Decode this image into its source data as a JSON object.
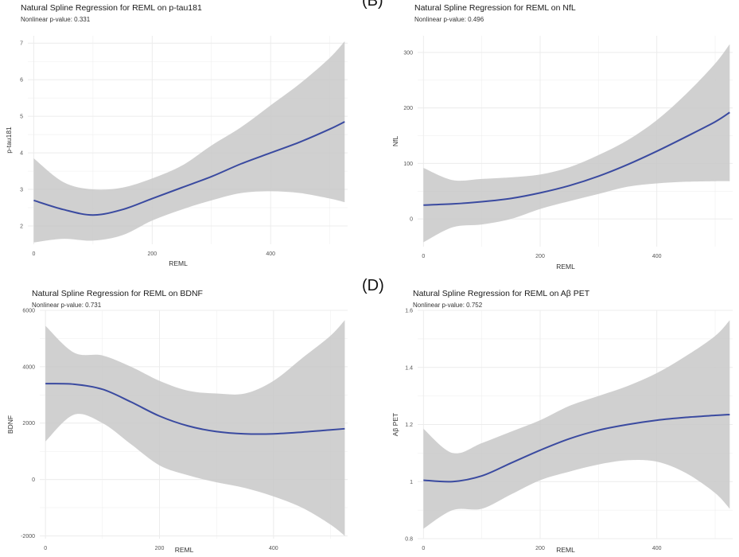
{
  "colors": {
    "line": "#3a4aa0",
    "band": "#c8c8c8",
    "grid": "#ececec"
  },
  "panel_letters": [
    "(B)",
    "(D)"
  ],
  "chart_data": [
    {
      "type": "line",
      "title": "Natural Spline Regression for REML on p-tau181",
      "subtitle": "Nonlinear p-value: 0.331",
      "xlabel": "REML",
      "ylabel": "p-tau181",
      "xlim": [
        -10,
        530
      ],
      "ylim": [
        1.5,
        7.2
      ],
      "xticks": [
        0,
        200,
        400
      ],
      "yticks": [
        2,
        3,
        4,
        5,
        6,
        7
      ],
      "x": [
        0,
        50,
        100,
        150,
        200,
        250,
        300,
        350,
        400,
        450,
        500,
        525
      ],
      "fit": [
        2.7,
        2.45,
        2.3,
        2.45,
        2.75,
        3.05,
        3.35,
        3.7,
        4.0,
        4.3,
        4.65,
        4.85
      ],
      "lower": [
        1.55,
        1.65,
        1.6,
        1.75,
        2.15,
        2.45,
        2.7,
        2.9,
        2.95,
        2.9,
        2.75,
        2.65
      ],
      "upper": [
        3.85,
        3.2,
        3.0,
        3.05,
        3.3,
        3.65,
        4.2,
        4.7,
        5.3,
        5.9,
        6.6,
        7.05
      ]
    },
    {
      "type": "line",
      "title": "Natural Spline Regression for REML on NfL",
      "subtitle": "Nonlinear p-value: 0.496",
      "xlabel": "REML",
      "ylabel": "NfL",
      "xlim": [
        -10,
        530
      ],
      "ylim": [
        -50,
        330
      ],
      "xticks": [
        0,
        200,
        400
      ],
      "yticks": [
        0,
        100,
        200,
        300
      ],
      "x": [
        0,
        50,
        100,
        150,
        200,
        250,
        300,
        350,
        400,
        450,
        500,
        525
      ],
      "fit": [
        25,
        27,
        31,
        37,
        47,
        60,
        77,
        98,
        122,
        148,
        175,
        192
      ],
      "lower": [
        -42,
        -15,
        -10,
        0,
        18,
        32,
        45,
        58,
        64,
        67,
        68,
        68
      ],
      "upper": [
        92,
        70,
        72,
        75,
        80,
        93,
        115,
        142,
        178,
        225,
        280,
        315
      ]
    },
    {
      "type": "line",
      "title": "Natural Spline Regression for REML on BDNF",
      "subtitle": "Nonlinear p-value: 0.731",
      "xlabel": "REML",
      "ylabel": "BDNF",
      "xlim": [
        -10,
        530
      ],
      "ylim": [
        -2100,
        6000
      ],
      "xticks": [
        0,
        200,
        400
      ],
      "yticks": [
        -2000,
        0,
        2000,
        4000,
        6000
      ],
      "x": [
        0,
        50,
        100,
        150,
        200,
        250,
        300,
        350,
        400,
        450,
        500,
        525
      ],
      "fit": [
        3400,
        3380,
        3200,
        2750,
        2250,
        1900,
        1700,
        1620,
        1620,
        1680,
        1760,
        1800
      ],
      "lower": [
        1350,
        2300,
        2000,
        1250,
        500,
        150,
        -100,
        -300,
        -600,
        -1000,
        -1600,
        -2000
      ],
      "upper": [
        5450,
        4500,
        4400,
        4000,
        3500,
        3150,
        3050,
        3050,
        3500,
        4300,
        5100,
        5650
      ]
    },
    {
      "type": "line",
      "title": "Natural Spline Regression for REML on Aβ PET",
      "subtitle": "Nonlinear p-value: 0.752",
      "xlabel": "REML",
      "ylabel": "Aβ PET",
      "xlim": [
        -10,
        530
      ],
      "ylim": [
        0.8,
        1.6
      ],
      "xticks": [
        0,
        200,
        400
      ],
      "yticks": [
        0.8,
        1.0,
        1.2,
        1.4,
        1.6
      ],
      "x": [
        0,
        50,
        100,
        150,
        200,
        250,
        300,
        350,
        400,
        450,
        500,
        525
      ],
      "fit": [
        1.005,
        1.0,
        1.02,
        1.065,
        1.11,
        1.15,
        1.18,
        1.2,
        1.215,
        1.225,
        1.232,
        1.235
      ],
      "lower": [
        0.835,
        0.9,
        0.905,
        0.955,
        1.005,
        1.035,
        1.06,
        1.075,
        1.07,
        1.03,
        0.96,
        0.905
      ],
      "upper": [
        1.185,
        1.1,
        1.135,
        1.175,
        1.215,
        1.265,
        1.3,
        1.335,
        1.38,
        1.44,
        1.51,
        1.565
      ]
    }
  ]
}
